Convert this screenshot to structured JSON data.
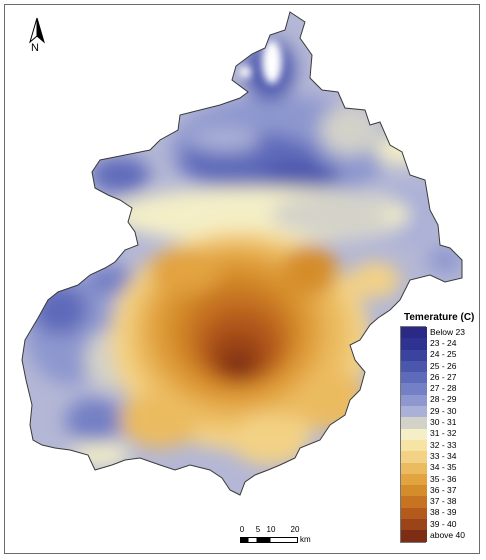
{
  "north_label": "N",
  "legend": {
    "title": "Temerature (C)",
    "classes": [
      {
        "label": "Below 23",
        "color": "#2a2a86"
      },
      {
        "label": "23 - 24",
        "color": "#2e3391"
      },
      {
        "label": "24 - 25",
        "color": "#3a449f"
      },
      {
        "label": "25 - 26",
        "color": "#4b56ad"
      },
      {
        "label": "26 - 27",
        "color": "#5e6aba"
      },
      {
        "label": "27 - 28",
        "color": "#7480c5"
      },
      {
        "label": "28 - 29",
        "color": "#8e98cf"
      },
      {
        "label": "29 - 30",
        "color": "#aab0d7"
      },
      {
        "label": "30 - 31",
        "color": "#d3d2c9"
      },
      {
        "label": "31 - 32",
        "color": "#f4efc7"
      },
      {
        "label": "32 - 33",
        "color": "#f7e4a5"
      },
      {
        "label": "33 - 34",
        "color": "#f3d285"
      },
      {
        "label": "34 - 35",
        "color": "#ebbb60"
      },
      {
        "label": "35 - 36",
        "color": "#e2a340"
      },
      {
        "label": "36 - 37",
        "color": "#d58d2b"
      },
      {
        "label": "37 - 38",
        "color": "#c77422"
      },
      {
        "label": "38 - 39",
        "color": "#b45a1d"
      },
      {
        "label": "39 - 40",
        "color": "#9b4419"
      },
      {
        "label": "above 40",
        "color": "#7e2d15"
      }
    ]
  },
  "scale_bar": {
    "ticks": [
      "0",
      "5",
      "10",
      "20"
    ],
    "unit": "km"
  }
}
